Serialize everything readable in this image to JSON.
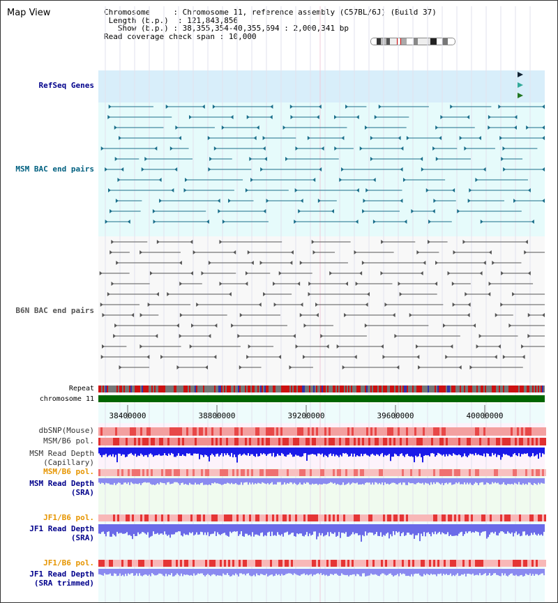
{
  "page": {
    "title": "Map View"
  },
  "info": {
    "chromosome_label": "Chromosome",
    "chromosome_value": "Chromosome 11, reference assembly (C57BL/6J) (Build 37)",
    "length_label": "Length (b.p.)",
    "length_value": "121,843,856",
    "show_label": "Show (b.p.)",
    "show_value": "38,355,354-40,355,694 : 2,000,341 bp",
    "coverage_label": "Read coverage check span",
    "coverage_value": "10,000"
  },
  "tracks": {
    "refseq": "RefSeq Genes",
    "msm_bac": "MSM BAC end pairs",
    "b6n_bac": "B6N BAC end pairs",
    "repeat": "Repeat",
    "chromosome": "chromosome 11",
    "dbsnp": "dbSNP(Mouse)",
    "msm_b6_pol": "MSM/B6 pol.",
    "msm_depth_cap_1": "MSM Read Depth",
    "msm_depth_cap_2": "(Capillary)",
    "msm_b6_pol2": "MSM/B6 pol.",
    "msm_depth_sra_1": "MSM Read Depth",
    "msm_depth_sra_2": "(SRA)",
    "jf1_pol": "JF1/B6 pol.",
    "jf1_depth_1": "JF1 Read Depth",
    "jf1_depth_2": "(SRA)",
    "jf1_pol2": "JF1/B6 pol.",
    "jf1_trim_1": "JF1 Read Depth",
    "jf1_trim_2": "(SRA trimmed)"
  },
  "axis": {
    "ticks": [
      "38400000",
      "38800000",
      "39200000",
      "39600000",
      "40000000"
    ]
  },
  "colors": {
    "refseq_bg": "#d8eefa",
    "msm_bac": "#1a6e8a",
    "b6n_bac": "#555555",
    "chromosome": "#006600",
    "label_blue": "#00008b",
    "label_orange": "#e69500",
    "label_teal": "#006080"
  }
}
